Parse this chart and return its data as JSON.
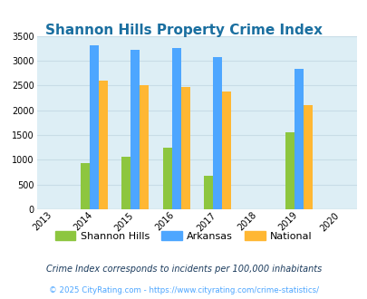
{
  "title": "Shannon Hills Property Crime Index",
  "all_years": [
    2013,
    2014,
    2015,
    2016,
    2017,
    2018,
    2019,
    2020
  ],
  "data_years": [
    2014,
    2015,
    2016,
    2017,
    2019
  ],
  "shannon_hills": [
    930,
    1060,
    1240,
    670,
    1550
  ],
  "arkansas": [
    3310,
    3220,
    3250,
    3080,
    2840
  ],
  "national": [
    2590,
    2500,
    2470,
    2380,
    2100
  ],
  "bar_colors": {
    "shannon_hills": "#8dc63f",
    "arkansas": "#4da6ff",
    "national": "#ffb733"
  },
  "ylim": [
    0,
    3500
  ],
  "yticks": [
    0,
    500,
    1000,
    1500,
    2000,
    2500,
    3000,
    3500
  ],
  "title_color": "#1a6fa0",
  "title_fontsize": 11,
  "bg_color": "#ddeef5",
  "legend_labels": [
    "Shannon Hills",
    "Arkansas",
    "National"
  ],
  "footnote1": "Crime Index corresponds to incidents per 100,000 inhabitants",
  "footnote2": "© 2025 CityRating.com - https://www.cityrating.com/crime-statistics/",
  "bar_width": 0.22,
  "grid_color": "#c8dce6",
  "axis_bg": "#ddeef5",
  "footnote1_color": "#1a3a5c",
  "footnote2_color": "#4da6ff"
}
